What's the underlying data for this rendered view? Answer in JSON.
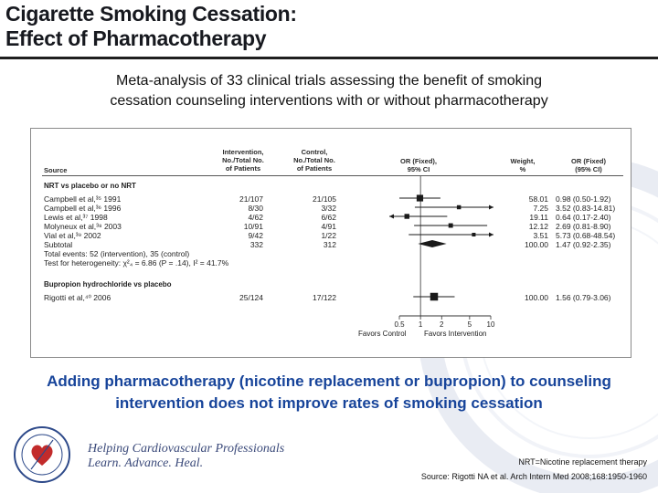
{
  "title": {
    "line1": "Cigarette Smoking Cessation:",
    "line2": "Effect of Pharmacotherapy"
  },
  "subtitle": {
    "line1": "Meta-analysis of 33 clinical trials assessing the benefit of smoking",
    "line2": "cessation counseling interventions with or without pharmacotherapy"
  },
  "forest": {
    "headers": {
      "source": "Source",
      "intervention": [
        "Intervention,",
        "No./Total No.",
        "of Patients"
      ],
      "control": [
        "Control,",
        "No./Total No.",
        "of Patients"
      ],
      "or_fixed_ci": [
        "OR (Fixed),",
        "95% CI"
      ],
      "weight": [
        "Weight,",
        "%"
      ],
      "or_fixed_ci_text": [
        "OR (Fixed)",
        "(95% CI)"
      ]
    },
    "groups": [
      {
        "label": "NRT vs placebo or no NRT",
        "rows": [
          {
            "source": "Campbell et al,³⁵ 1991",
            "intervention": "21/107",
            "control": "21/105",
            "weight": "58.01",
            "ci_text": "0.98 (0.50-1.92)",
            "or": 0.98,
            "lo": 0.5,
            "hi": 1.92
          },
          {
            "source": "Campbell et al,³⁶ 1996",
            "intervention": "8/30",
            "control": "3/32",
            "weight": "7.25",
            "ci_text": "3.52 (0.83-14.81)",
            "or": 3.52,
            "lo": 0.83,
            "hi": 14.81
          },
          {
            "source": "Lewis et al,³⁷ 1998",
            "intervention": "4/62",
            "control": "6/62",
            "weight": "19.11",
            "ci_text": "0.64 (0.17-2.40)",
            "or": 0.64,
            "lo": 0.17,
            "hi": 2.4
          },
          {
            "source": "Molyneux et al,³⁸ 2003",
            "intervention": "10/91",
            "control": "4/91",
            "weight": "12.12",
            "ci_text": "2.69 (0.81-8.90)",
            "or": 2.69,
            "lo": 0.81,
            "hi": 8.9
          },
          {
            "source": "Vial et al,³⁹ 2002",
            "intervention": "9/42",
            "control": "1/22",
            "weight": "3.51",
            "ci_text": "5.73 (0.68-48.54)",
            "or": 5.73,
            "lo": 0.68,
            "hi": 48.54
          }
        ],
        "subtotal": {
          "label": "Subtotal",
          "intervention": "332",
          "control": "312",
          "weight": "100.00",
          "ci_text": "1.47 (0.92-2.35)",
          "or": 1.47,
          "lo": 0.92,
          "hi": 2.35
        },
        "total_events": "Total events: 52 (intervention), 35 (control)",
        "heterogeneity": "Test for heterogeneity: χ²₄ = 6.86 (P = .14), I² = 41.7%"
      },
      {
        "label": "Bupropion hydrochloride vs placebo",
        "rows": [
          {
            "source": "Rigotti et al,⁴⁰ 2006",
            "intervention": "25/124",
            "control": "17/122",
            "weight": "100.00",
            "ci_text": "1.56 (0.79-3.06)",
            "or": 1.56,
            "lo": 0.79,
            "hi": 3.06
          }
        ]
      }
    ],
    "axis": {
      "ticks": [
        0.5,
        1,
        2,
        5,
        10
      ],
      "tick_labels": [
        "0.5",
        "1",
        "2",
        "5",
        "10"
      ],
      "favors_left": "Favors Control",
      "favors_right": "Favors Intervention",
      "scale": "log"
    }
  },
  "caption": {
    "line1": "Adding pharmacotherapy (nicotine replacement or bupropion) to counseling",
    "line2": "intervention does not improve rates of smoking cessation"
  },
  "logo": {
    "tagline1": "Helping Cardiovascular Professionals",
    "tagline2": "Learn. Advance. Heal."
  },
  "footnote": {
    "nrt": "NRT=Nicotine replacement therapy",
    "source": "Source: Rigotti NA et al. Arch Intern Med 2008;168:1950-1960"
  },
  "colors": {
    "caption": "#17449a",
    "logo": "#3b4a7a",
    "markers": "#1a1a1a"
  }
}
